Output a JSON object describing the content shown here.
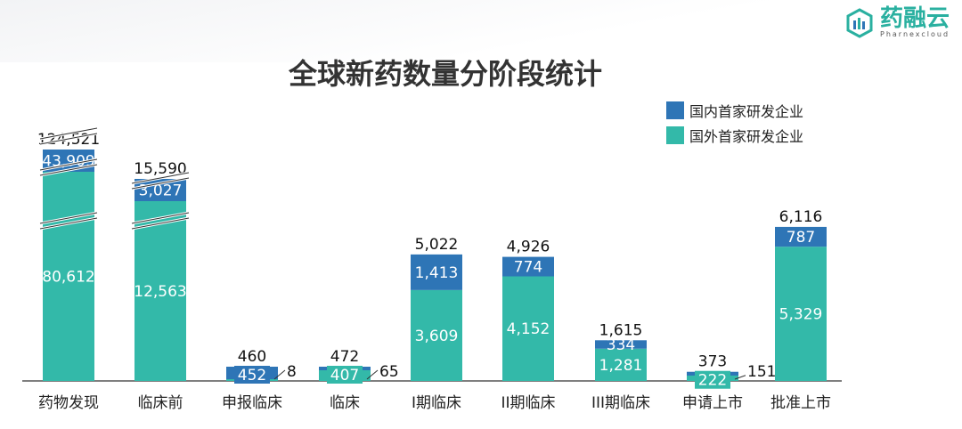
{
  "title": "全球新药数量分阶段统计",
  "logo": {
    "name": "药融云",
    "sub": "Pharnexcloud"
  },
  "colors": {
    "domestic": "#2e75b6",
    "foreign": "#33b9a9"
  },
  "chart_data": {
    "type": "bar",
    "stacked": true,
    "title": "全球新药数量分阶段统计",
    "categories": [
      "药物发现",
      "临床前",
      "申报临床",
      "临床",
      "I期临床",
      "II期临床",
      "III期临床",
      "申请上市",
      "批准上市"
    ],
    "series": [
      {
        "name": "国外首家研发企业",
        "values": [
          80612,
          12563,
          8,
          407,
          3609,
          4152,
          1281,
          222,
          5329
        ]
      },
      {
        "name": "国内首家研发企业",
        "values": [
          43909,
          3027,
          452,
          65,
          1413,
          774,
          334,
          151,
          787
        ]
      }
    ],
    "totals": [
      124521,
      15590,
      460,
      472,
      5022,
      4926,
      1615,
      373,
      6116
    ],
    "labels": {
      "foreign": [
        "80,612",
        "12,563",
        "8",
        "407",
        "3,609",
        "4,152",
        "1,281",
        "222",
        "5,329"
      ],
      "domestic": [
        "43,909",
        "3,027",
        "452",
        "65",
        "1,413",
        "774",
        "334",
        "151",
        "787"
      ],
      "totals": [
        "124,521",
        "15,590",
        "460",
        "472",
        "5,022",
        "4,926",
        "1,615",
        "373",
        "6,116"
      ]
    },
    "axis_break": [
      "药物发现",
      "临床前"
    ],
    "legend": "top-right"
  }
}
